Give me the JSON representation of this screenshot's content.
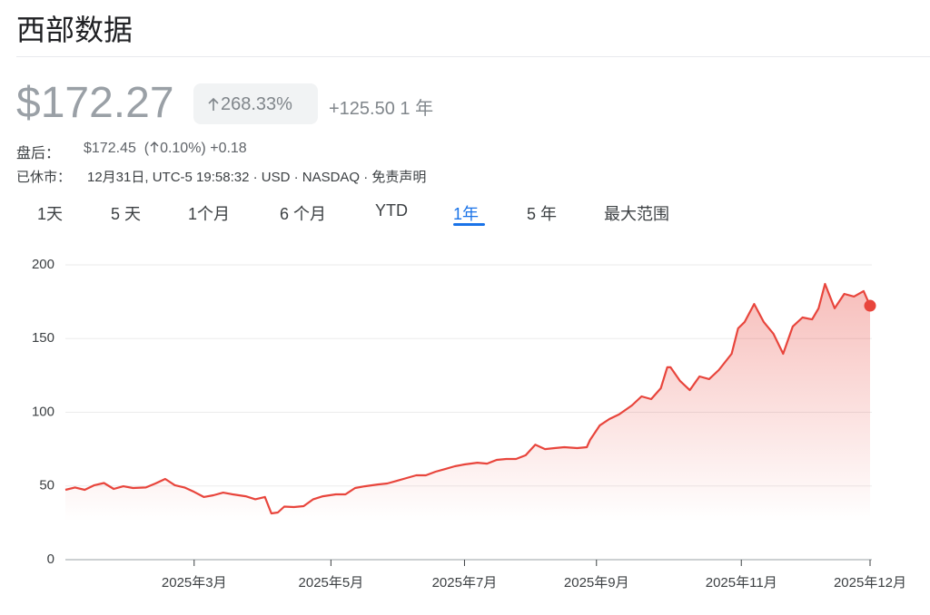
{
  "header": {
    "title": "西部数据",
    "price": "$172.27",
    "change_pct": "268.33%",
    "change_abs": "+125.50",
    "period": "1 年"
  },
  "after_hours": {
    "label": "盘后：",
    "price": "$172.45",
    "open": "(",
    "change_pct": "0.10%)",
    "change_abs": "+0.18"
  },
  "status": {
    "label": "已休市：",
    "details": "12月31日, UTC-5 19:58:32 · USD · NASDAQ · 免责声明"
  },
  "tabs": [
    "1天",
    "5 天",
    "1个月",
    "6 个月",
    "YTD",
    "1年",
    "5 年",
    "最大范围"
  ],
  "chart_data": {
    "type": "line",
    "color": "#e8453c",
    "x": [
      0,
      3,
      6,
      9,
      12,
      15,
      18,
      21,
      25,
      28,
      31,
      34,
      37,
      40,
      43,
      46,
      49,
      52,
      56,
      59,
      62,
      64,
      66,
      68,
      71,
      74,
      77,
      80,
      84,
      87,
      90,
      93,
      97,
      100,
      103,
      106,
      109,
      112,
      115,
      118,
      121,
      124,
      128,
      131,
      134,
      137,
      140,
      143,
      146,
      149,
      152,
      155,
      159,
      162,
      163,
      166,
      169,
      172,
      176,
      179,
      182,
      185,
      187,
      188,
      191,
      194,
      197,
      200,
      203,
      207,
      209,
      211,
      214,
      217,
      220,
      223,
      226,
      229,
      232,
      234,
      236,
      239,
      242,
      245,
      248,
      250
    ],
    "values": [
      47.4,
      49,
      47.4,
      50.5,
      52,
      48,
      49.8,
      48.6,
      49,
      51.7,
      54.8,
      50.5,
      49,
      46,
      42.5,
      43.7,
      45.5,
      44.3,
      43,
      41,
      42.5,
      31.4,
      32,
      36,
      35.7,
      36.3,
      41,
      43,
      44.3,
      44.3,
      48.6,
      49.8,
      51,
      51.7,
      53.5,
      55.4,
      57.2,
      57.2,
      59.7,
      61.5,
      63.4,
      64.6,
      65.8,
      65.2,
      67.7,
      68.3,
      68.3,
      70.8,
      78,
      75,
      75.7,
      76.3,
      75.7,
      76.3,
      81.2,
      91,
      95.4,
      98.5,
      104.6,
      110.8,
      108.9,
      116.3,
      130.5,
      130.5,
      121.2,
      115,
      124.3,
      122.5,
      128.6,
      139.7,
      156.9,
      161.2,
      173.5,
      161.2,
      153.2,
      139.7,
      158.2,
      164.3,
      163,
      170.5,
      187.1,
      170.5,
      180.3,
      178.5,
      182.2,
      172.27
    ],
    "xlim": [
      0,
      250
    ],
    "xticks": [
      {
        "value": 40,
        "label": "2025年3月"
      },
      {
        "value": 82.5,
        "label": "2025年5月"
      },
      {
        "value": 124,
        "label": "2025年7月"
      },
      {
        "value": 165,
        "label": "2025年9月"
      },
      {
        "value": 210,
        "label": "2025年11月"
      },
      {
        "value": 250,
        "label": "2025年12月"
      }
    ],
    "ylim": [
      0,
      200
    ],
    "yticks": [
      0,
      50,
      100,
      150,
      200
    ],
    "grid": true
  }
}
